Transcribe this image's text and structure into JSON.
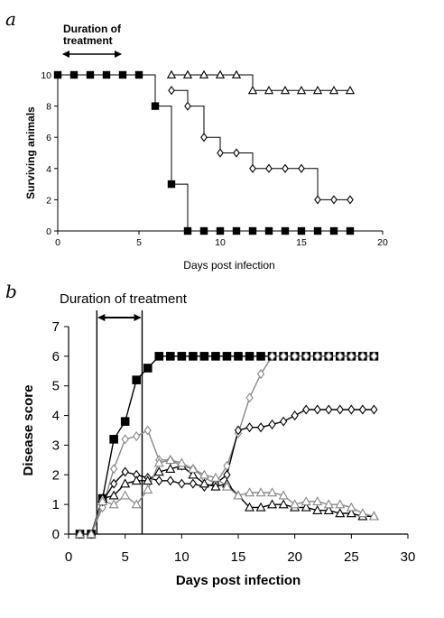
{
  "chart_data": [
    {
      "panel": "a",
      "type": "line",
      "xlabel": "Days post infection",
      "ylabel": "Surviving animals",
      "xlim": [
        0,
        20
      ],
      "ylim": [
        0,
        10
      ],
      "xticks": [
        0,
        5,
        10,
        15,
        20
      ],
      "yticks": [
        0,
        2,
        4,
        6,
        8,
        10
      ],
      "grid": false,
      "step": true,
      "annotation": {
        "text_line1": "Duration of",
        "text_line2": "treatment",
        "x_range": [
          0,
          4
        ]
      },
      "series": [
        {
          "marker": "square-filled",
          "color": "#000000",
          "x": [
            0,
            1,
            2,
            3,
            4,
            5,
            6,
            7,
            8,
            9,
            10,
            11,
            12,
            13,
            14,
            15,
            16,
            17,
            18
          ],
          "y": [
            10,
            10,
            10,
            10,
            10,
            10,
            8,
            3,
            0,
            0,
            0,
            0,
            0,
            0,
            0,
            0,
            0,
            0,
            0
          ]
        },
        {
          "marker": "triangle-open",
          "color": "#000000",
          "x": [
            7,
            8,
            9,
            10,
            11,
            12,
            13,
            14,
            15,
            16,
            17,
            18
          ],
          "y": [
            10,
            10,
            10,
            10,
            10,
            9,
            9,
            9,
            9,
            9,
            9,
            9
          ]
        },
        {
          "marker": "diamond-open",
          "color": "#000000",
          "x": [
            7,
            8,
            9,
            10,
            11,
            12,
            13,
            14,
            15,
            16,
            17,
            18
          ],
          "y": [
            9,
            8,
            6,
            5,
            5,
            4,
            4,
            4,
            4,
            2,
            2,
            2
          ]
        }
      ]
    },
    {
      "panel": "b",
      "type": "line",
      "xlabel": "Days post infection",
      "ylabel": "Disease score",
      "xlim": [
        0,
        30
      ],
      "ylim": [
        0,
        7
      ],
      "xticks": [
        0,
        5,
        10,
        15,
        20,
        25,
        30
      ],
      "yticks": [
        0,
        1,
        2,
        3,
        4,
        5,
        6,
        7
      ],
      "grid": false,
      "annotation": {
        "text": "Duration of treatment",
        "x_range": [
          2.5,
          6.5
        ]
      },
      "series": [
        {
          "marker": "square-filled",
          "color": "#000000",
          "x": [
            1,
            2,
            3,
            4,
            5,
            6,
            7,
            8,
            9,
            10,
            11,
            12,
            13,
            14,
            15,
            16,
            17,
            18,
            19,
            20,
            21,
            22,
            23,
            24,
            25,
            26,
            27
          ],
          "y": [
            0,
            0,
            1.2,
            3.2,
            3.8,
            5.2,
            5.6,
            6,
            6,
            6,
            6,
            6,
            6,
            6,
            6,
            6,
            6,
            6,
            6,
            6,
            6,
            6,
            6,
            6,
            6,
            6,
            6
          ]
        },
        {
          "marker": "diamond-open",
          "color": "#999999",
          "x": [
            1,
            2,
            3,
            4,
            5,
            6,
            7,
            8,
            9,
            10,
            11,
            12,
            13,
            14,
            15,
            16,
            17,
            18,
            19,
            20,
            21,
            22,
            23,
            24,
            25,
            26,
            27
          ],
          "y": [
            0,
            0,
            0.9,
            2.2,
            3.2,
            3.3,
            3.5,
            2.5,
            2.5,
            2.3,
            2.2,
            1.9,
            1.7,
            2.3,
            3.4,
            4.6,
            5.4,
            6,
            6,
            6,
            6,
            6,
            6,
            6,
            6,
            6,
            6
          ]
        },
        {
          "marker": "diamond-open",
          "color": "#000000",
          "x": [
            1,
            2,
            3,
            4,
            5,
            6,
            7,
            8,
            9,
            10,
            11,
            12,
            13,
            14,
            15,
            16,
            17,
            18,
            19,
            20,
            21,
            22,
            23,
            24,
            25,
            26,
            27
          ],
          "y": [
            0,
            0,
            1.1,
            1.7,
            2.1,
            2.0,
            1.9,
            1.8,
            1.8,
            1.7,
            1.7,
            1.6,
            1.7,
            2.0,
            3.5,
            3.6,
            3.6,
            3.7,
            3.8,
            4.0,
            4.2,
            4.2,
            4.2,
            4.2,
            4.2,
            4.2,
            4.2
          ]
        },
        {
          "marker": "triangle-open",
          "color": "#000000",
          "x": [
            1,
            2,
            3,
            4,
            5,
            6,
            7,
            8,
            9,
            10,
            11,
            12,
            13,
            14,
            15,
            16,
            17,
            18,
            19,
            20,
            21,
            22,
            23,
            24,
            25,
            26,
            27
          ],
          "y": [
            0,
            0,
            1.2,
            1.3,
            1.7,
            1.8,
            1.8,
            2.1,
            2.2,
            2.3,
            2.0,
            1.7,
            1.6,
            1.7,
            1.3,
            0.9,
            0.9,
            1.0,
            1.0,
            0.9,
            0.9,
            0.8,
            0.8,
            0.7,
            0.7,
            0.6,
            0.6
          ]
        },
        {
          "marker": "triangle-open",
          "color": "#999999",
          "x": [
            1,
            2,
            3,
            4,
            5,
            6,
            7,
            8,
            9,
            10,
            11,
            12,
            13,
            14,
            15,
            16,
            17,
            18,
            19,
            20,
            21,
            22,
            23,
            24,
            25,
            26,
            27
          ],
          "y": [
            0,
            0,
            1.1,
            1.0,
            1.3,
            1.0,
            1.5,
            2.4,
            2.5,
            2.4,
            2.2,
            2.0,
            1.9,
            1.6,
            1.3,
            1.4,
            1.4,
            1.4,
            1.3,
            1.0,
            1.1,
            1.1,
            1.0,
            1.0,
            0.9,
            0.7,
            0.6
          ]
        }
      ]
    }
  ]
}
